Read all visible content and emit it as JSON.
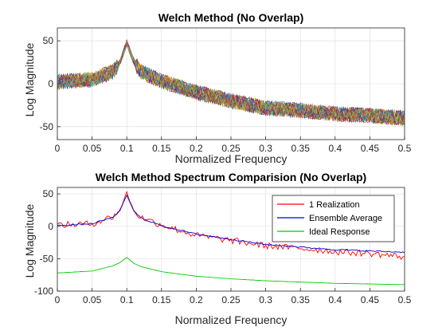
{
  "chart_data": [
    {
      "type": "line",
      "title": "Welch Method (No Overlap)",
      "xlabel": "Normalized Frequency",
      "ylabel": "Log Magnitude",
      "xlim": [
        0,
        0.5
      ],
      "ylim": [
        -65,
        65
      ],
      "xticks": [
        0,
        0.05,
        0.1,
        0.15,
        0.2,
        0.25,
        0.3,
        0.35,
        0.4,
        0.45,
        0.5
      ],
      "xtick_labels": [
        "0",
        "0.05",
        "0.1",
        "0.15",
        "0.2",
        "0.25",
        "0.3",
        "0.35",
        "0.4",
        "0.45",
        "0.5"
      ],
      "yticks": [
        -50,
        0,
        50
      ],
      "ytick_labels": [
        "-50",
        "0",
        "50"
      ],
      "grid": true,
      "realizations": 40,
      "series_colors": [
        "#0072BD",
        "#D95319",
        "#EDB120",
        "#7E2F8E",
        "#77AC30",
        "#4DBEEE",
        "#A2142F"
      ],
      "envelope": {
        "x": [
          0,
          0.05,
          0.08,
          0.09,
          0.1,
          0.11,
          0.12,
          0.15,
          0.2,
          0.25,
          0.3,
          0.35,
          0.4,
          0.45,
          0.5
        ],
        "y": [
          2,
          5,
          14,
          24,
          48,
          26,
          14,
          3,
          -10,
          -20,
          -28,
          -31,
          -35,
          -37,
          -40
        ]
      },
      "noise_amplitude": 9
    },
    {
      "type": "line",
      "title": "Welch Method Spectrum Comparision (No Overlap)",
      "xlabel": "Normalized Frequency",
      "ylabel": "Log Magnitude",
      "xlim": [
        0,
        0.5
      ],
      "ylim": [
        -100,
        60
      ],
      "xticks": [
        0,
        0.05,
        0.1,
        0.15,
        0.2,
        0.25,
        0.3,
        0.35,
        0.4,
        0.45,
        0.5
      ],
      "xtick_labels": [
        "0",
        "0.05",
        "0.1",
        "0.15",
        "0.2",
        "0.25",
        "0.3",
        "0.35",
        "0.4",
        "0.45",
        "0.5"
      ],
      "yticks": [
        -100,
        -50,
        0,
        50
      ],
      "ytick_labels": [
        "-100",
        "-50",
        "0",
        "50"
      ],
      "grid": true,
      "legend": {
        "position": "top-right"
      },
      "series": [
        {
          "name": "1 Realization",
          "color": "#ff0000",
          "x": [
            0,
            0.05,
            0.08,
            0.09,
            0.1,
            0.11,
            0.12,
            0.15,
            0.2,
            0.25,
            0.3,
            0.35,
            0.4,
            0.45,
            0.5
          ],
          "y": [
            2,
            4,
            15,
            25,
            52,
            24,
            14,
            2,
            -14,
            -22,
            -30,
            -34,
            -39,
            -42,
            -47
          ],
          "noise_amplitude": 5
        },
        {
          "name": "Ensemble Average",
          "color": "#0000cc",
          "x": [
            0,
            0.05,
            0.08,
            0.09,
            0.1,
            0.11,
            0.12,
            0.15,
            0.2,
            0.25,
            0.3,
            0.35,
            0.4,
            0.45,
            0.5
          ],
          "y": [
            1,
            4,
            14,
            24,
            48,
            24,
            13,
            1,
            -12,
            -20,
            -28,
            -32,
            -36,
            -38,
            -40
          ],
          "noise_amplitude": 1
        },
        {
          "name": "Ideal Response",
          "color": "#00cc00",
          "x": [
            0,
            0.05,
            0.08,
            0.09,
            0.1,
            0.11,
            0.12,
            0.15,
            0.2,
            0.25,
            0.3,
            0.35,
            0.4,
            0.45,
            0.5
          ],
          "y": [
            -72,
            -69,
            -61,
            -56,
            -48,
            -57,
            -62,
            -70,
            -77,
            -81,
            -84,
            -86,
            -88,
            -89,
            -90
          ],
          "noise_amplitude": 0
        }
      ]
    }
  ]
}
